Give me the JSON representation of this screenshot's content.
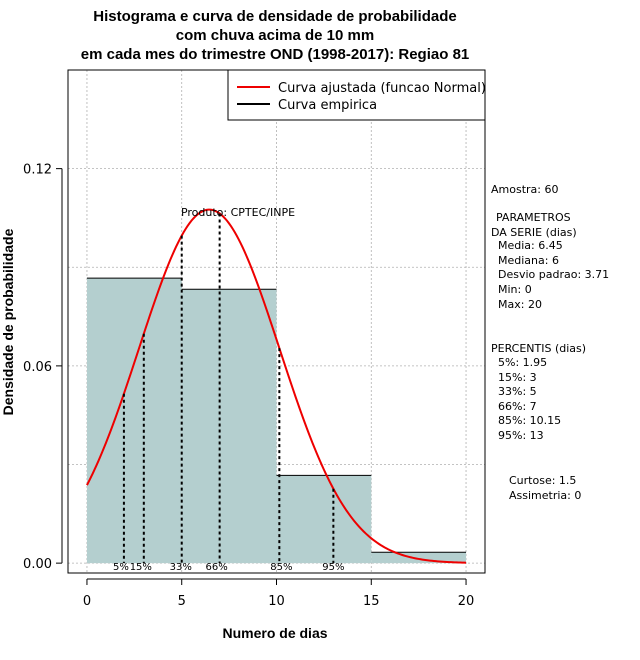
{
  "chart_data": {
    "type": "histogram",
    "title_lines": [
      "Histograma e curva de densidade de probabilidade",
      "com chuva acima de 10 mm",
      "em cada mes do trimestre OND (1998-2017): Regiao 81"
    ],
    "xlabel": "Numero de dias",
    "ylabel": "Densidade de probabilidade",
    "xlim": [
      -1,
      21
    ],
    "ylim": [
      -0.003,
      0.15
    ],
    "xticks": [
      0,
      5,
      10,
      15,
      20
    ],
    "yticks": [
      0.0,
      0.06,
      0.12
    ],
    "ytick_labels": [
      "0.00",
      "0.06",
      "0.12"
    ],
    "grid": true,
    "bins": [
      {
        "start": 0,
        "end": 5,
        "density": 0.0867
      },
      {
        "start": 5,
        "end": 10,
        "density": 0.0833
      },
      {
        "start": 10,
        "end": 15,
        "density": 0.0267
      },
      {
        "start": 15,
        "end": 20,
        "density": 0.0033
      }
    ],
    "normal_fit": {
      "mean": 6.45,
      "sd": 3.71,
      "x_from": 0,
      "x_to": 20
    },
    "percentile_lines": [
      {
        "label": "5%",
        "x": 1.95
      },
      {
        "label": "15%",
        "x": 3
      },
      {
        "label": "33%",
        "x": 5
      },
      {
        "label": "66%",
        "x": 7
      },
      {
        "label": "85%",
        "x": 10.15
      },
      {
        "label": "95%",
        "x": 13
      }
    ],
    "legend": {
      "position": "top-right",
      "entries": [
        {
          "label": "Curva ajustada (funcao Normal)",
          "color": "#ee0000"
        },
        {
          "label": "Curva empirica",
          "color": "#000000"
        }
      ]
    },
    "annotation": "Produto: CPTEC/INPE"
  },
  "colors": {
    "bar_fill": "#b4cfcf",
    "curve": "#ee0000",
    "grid": "#b0b0b0"
  },
  "stats": {
    "sample": "Amostra: 60",
    "params_header_1": "PARAMETROS",
    "params_header_2": "DA SERIE (dias)",
    "params": [
      "Media: 6.45",
      "Mediana: 6",
      "Desvio padrao: 3.71",
      "Min: 0",
      "Max: 20"
    ],
    "percentis_header": "PERCENTIS (dias)",
    "percentis": [
      "5%: 1.95",
      "15%: 3",
      "33%: 5",
      "66%: 7",
      "85%: 10.15",
      "95%: 13"
    ],
    "curtose": "Curtose: 1.5",
    "assimetria": "Assimetria: 0"
  }
}
